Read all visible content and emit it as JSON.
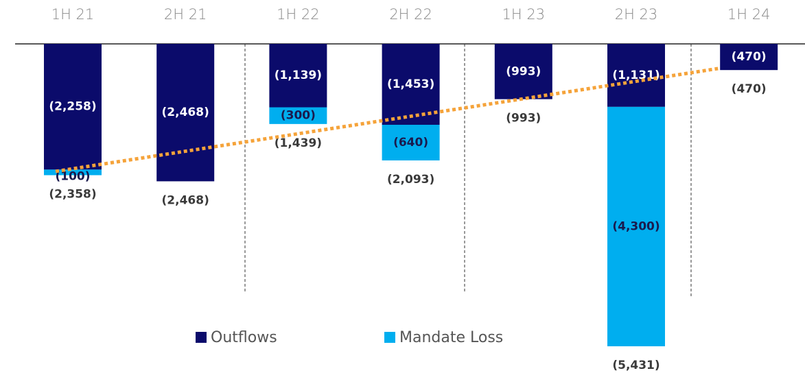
{
  "chart_data": {
    "type": "stacked-bar",
    "categories": [
      "1H 21",
      "2H 21",
      "1H 22",
      "2H 22",
      "1H 23",
      "2H 23",
      "1H 24"
    ],
    "series": [
      {
        "name": "Outflows",
        "color": "#0b0b6b",
        "text_color": "#ffffff",
        "values": [
          -2258,
          -2468,
          -1139,
          -1453,
          -993,
          -1131,
          -470
        ],
        "value_labels": [
          "(2,258)",
          "(2,468)",
          "(1,139)",
          "(1,453)",
          "(993)",
          "(1,131)",
          "(470)"
        ]
      },
      {
        "name": "Mandate Loss",
        "color": "#00aeef",
        "text_color": "#1a1a4e",
        "values": [
          -100,
          null,
          -300,
          -640,
          null,
          -4300,
          null
        ],
        "value_labels": [
          "(100)",
          null,
          "(300)",
          "(640)",
          null,
          "(4,300)",
          null
        ]
      }
    ],
    "totals": {
      "values": [
        -2358,
        -2468,
        -1439,
        -2093,
        -993,
        -5431,
        -470
      ],
      "value_labels": [
        "(2,358)",
        "(2,468)",
        "(1,439)",
        "(2,093)",
        "(993)",
        "(5,431)",
        "(470)"
      ]
    },
    "trend": {
      "color": "#f5a33a",
      "values": [
        -2290,
        -443
      ]
    },
    "ylim": [
      -5800,
      0
    ]
  }
}
